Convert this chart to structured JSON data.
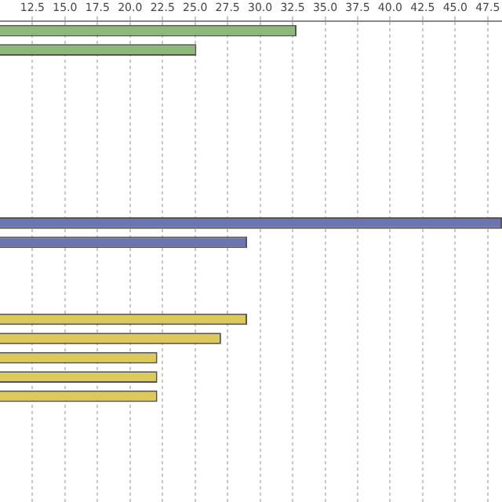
{
  "chart_data": {
    "type": "bar",
    "orientation": "horizontal",
    "categories": [
      null,
      null,
      null,
      null,
      null,
      null,
      null,
      null,
      null,
      null,
      null,
      null,
      null,
      null,
      null,
      null,
      null,
      null,
      null,
      null,
      null,
      null,
      null,
      null,
      null
    ],
    "values": [
      32.8,
      25.1,
      null,
      null,
      null,
      null,
      null,
      null,
      null,
      null,
      48.6,
      29.0,
      null,
      null,
      null,
      29.0,
      27.0,
      22.1,
      22.1,
      22.1,
      null,
      null,
      null,
      null,
      null
    ],
    "colors": [
      "#8cb87a",
      "#8cb87a",
      null,
      null,
      null,
      null,
      null,
      null,
      null,
      null,
      "#6b75b0",
      "#6b75b0",
      null,
      null,
      null,
      "#dcc95a",
      "#dcc95a",
      "#dcc95a",
      "#dcc95a",
      "#dcc95a",
      null,
      null,
      null,
      null,
      null
    ],
    "xlim": [
      10,
      48.6
    ],
    "xticks": [
      {
        "value": 12.5,
        "label": "12.5"
      },
      {
        "value": 15,
        "label": "15.0"
      },
      {
        "value": 17.5,
        "label": "17.5"
      },
      {
        "value": 20,
        "label": "20.0"
      },
      {
        "value": 22.5,
        "label": "22.5"
      },
      {
        "value": 25,
        "label": "25.0"
      },
      {
        "value": 27.5,
        "label": "27.5"
      },
      {
        "value": 30,
        "label": "30.0"
      },
      {
        "value": 32.5,
        "label": "32.5"
      },
      {
        "value": 35,
        "label": "35.0"
      },
      {
        "value": 37.5,
        "label": "37.5"
      },
      {
        "value": 40,
        "label": "40.0"
      },
      {
        "value": 42.5,
        "label": "42.5"
      },
      {
        "value": 45,
        "label": "45.0"
      },
      {
        "value": 47.5,
        "label": "47.5"
      }
    ],
    "grid": "x",
    "tick_labels": "x",
    "legend": false
  }
}
